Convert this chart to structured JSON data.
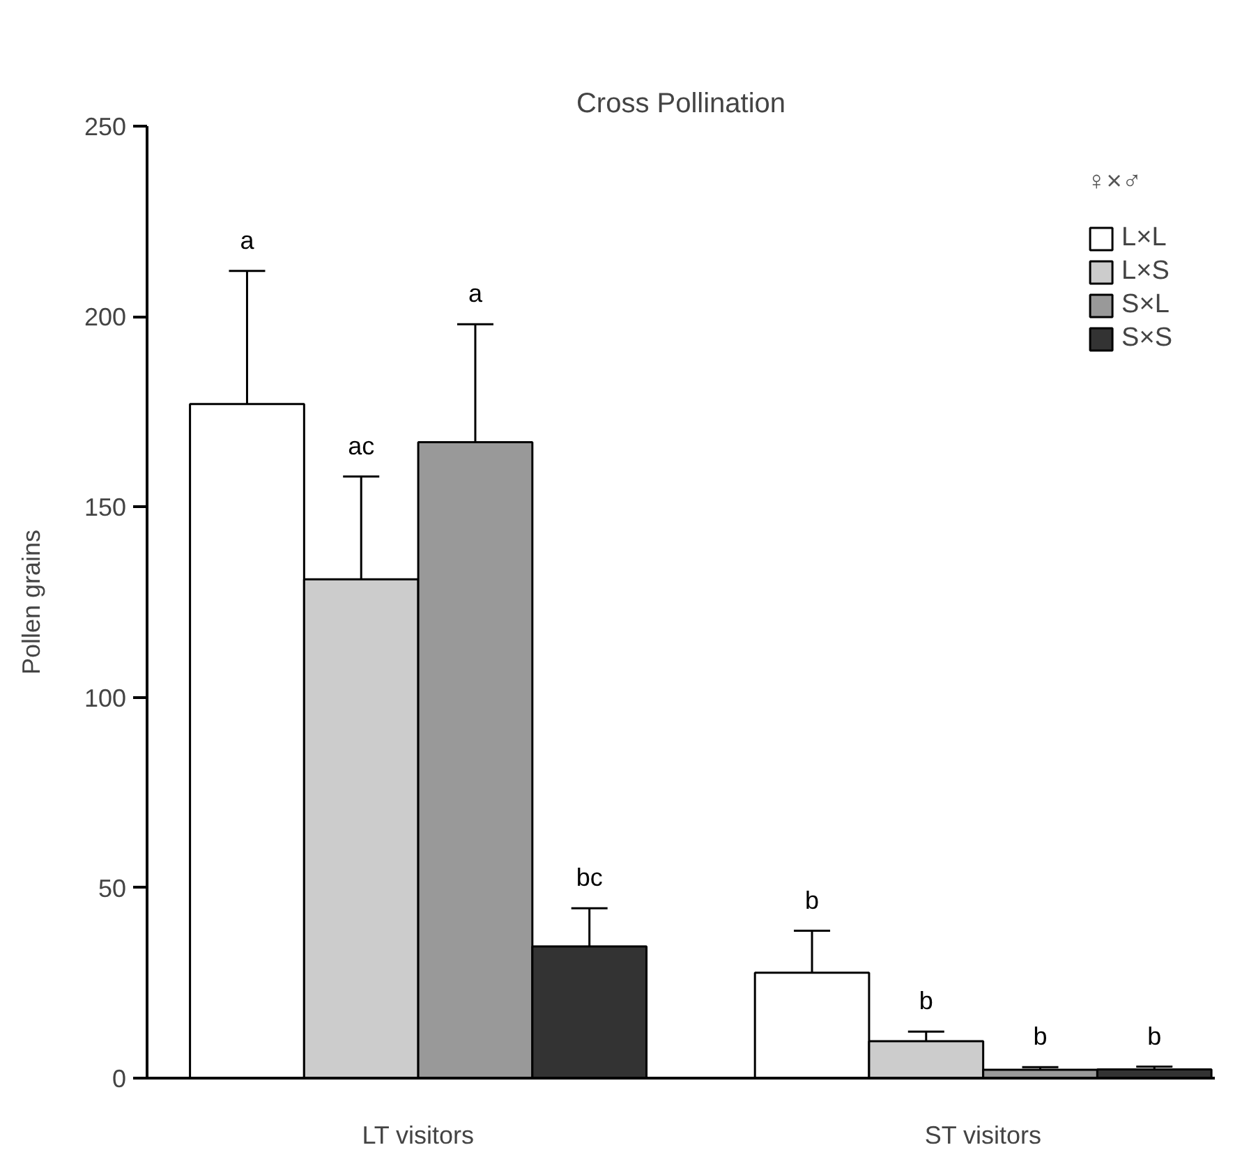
{
  "chart_data": {
    "type": "bar",
    "title": "Cross Pollination",
    "ylabel": "Pollen grains",
    "categories": [
      "LT visitors",
      "ST visitors"
    ],
    "ylim": [
      0,
      250
    ],
    "yticks": [
      0,
      50,
      100,
      150,
      200,
      250
    ],
    "legend": "top right",
    "legend_title": "♀×♂",
    "annotations": [
      "a",
      "ac",
      "a",
      "bc",
      "b",
      "b",
      "b",
      "b"
    ],
    "series": [
      {
        "name": "L×L",
        "color": "#ffffff",
        "values": [
          177,
          27.7
        ],
        "errors": [
          35,
          11
        ]
      },
      {
        "name": "L×S",
        "color": "#cccccc",
        "values": [
          131,
          9.7
        ],
        "errors": [
          27,
          2.5
        ]
      },
      {
        "name": "S×L",
        "color": "#999999",
        "values": [
          167,
          2.2
        ],
        "errors": [
          31,
          0.7
        ]
      },
      {
        "name": "S×S",
        "color": "#333333",
        "values": [
          34.6,
          2.3
        ],
        "errors": [
          10,
          0.7
        ]
      }
    ]
  }
}
